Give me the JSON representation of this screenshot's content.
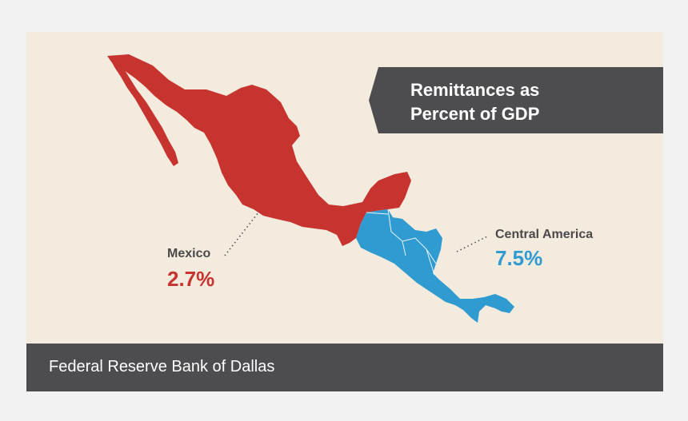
{
  "title": {
    "line1": "Remittances as",
    "line2": "Percent of GDP"
  },
  "regions": [
    {
      "name": "Mexico",
      "value": "2.7%",
      "color": "#c73430"
    },
    {
      "name": "Central America",
      "value": "7.5%",
      "color": "#2f9bd1"
    }
  ],
  "footer": {
    "source": "Federal Reserve Bank of Dallas"
  },
  "colors": {
    "background": "#f3ebdd",
    "banner": "#4d4d4f",
    "label_text": "#4a4a4a"
  }
}
